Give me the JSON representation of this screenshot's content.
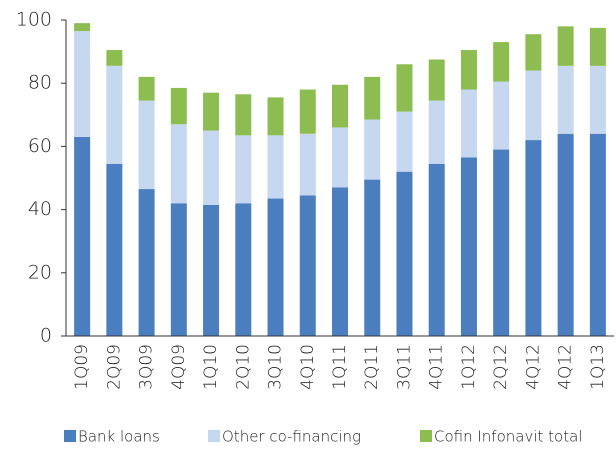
{
  "chart_data": {
    "type": "stacked_bar",
    "categories": [
      "1Q09",
      "2Q09",
      "3Q09",
      "4Q09",
      "1Q10",
      "2Q10",
      "3Q10",
      "4Q10",
      "1Q11",
      "2Q11",
      "3Q11",
      "4Q11",
      "1Q12",
      "2Q12",
      "4Q12",
      "4Q12",
      "1Q13"
    ],
    "series": [
      {
        "name": "Bank loans",
        "color": "#4a7ebf",
        "values": [
          63,
          54.5,
          46.5,
          42,
          41.5,
          42,
          43.5,
          44.5,
          47,
          49.5,
          52,
          54.5,
          56.5,
          59,
          62,
          64,
          64
        ]
      },
      {
        "name": "Other co-financing",
        "color": "#c5d8f0",
        "values": [
          33.5,
          31,
          28,
          25,
          23.5,
          21.5,
          20,
          19.5,
          19,
          19,
          19,
          20,
          21.5,
          21.5,
          22,
          21.5,
          21.5
        ]
      },
      {
        "name": "Cofin Infonavit total",
        "color": "#8dbd50",
        "values": [
          2.5,
          5,
          7.5,
          11.5,
          12,
          13,
          12,
          14,
          13.5,
          13.5,
          15,
          13,
          12.5,
          12.5,
          11.5,
          12.5,
          12
        ]
      }
    ],
    "ylim": [
      0,
      100
    ],
    "yticks": [
      0,
      20,
      40,
      60,
      80,
      100
    ],
    "legend": "bottom"
  }
}
